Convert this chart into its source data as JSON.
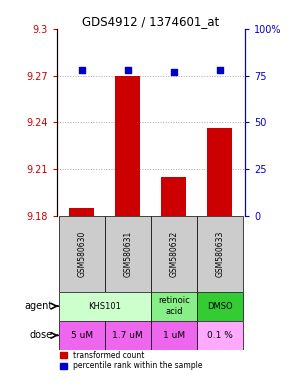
{
  "title": "GDS4912 / 1374601_at",
  "samples": [
    "GSM580630",
    "GSM580631",
    "GSM580632",
    "GSM580633"
  ],
  "bar_values": [
    9.185,
    9.27,
    9.205,
    9.236
  ],
  "percentile_values": [
    78,
    78,
    77,
    78
  ],
  "ylim_left": [
    9.18,
    9.3
  ],
  "ylim_right": [
    0,
    100
  ],
  "yticks_left": [
    9.18,
    9.21,
    9.24,
    9.27,
    9.3
  ],
  "ytick_labels_left": [
    "9.18",
    "9.21",
    "9.24",
    "9.27",
    "9.3"
  ],
  "yticks_right": [
    0,
    25,
    50,
    75,
    100
  ],
  "ytick_labels_right": [
    "0",
    "25",
    "50",
    "75",
    "100%"
  ],
  "bar_color": "#cc0000",
  "percentile_color": "#0000cc",
  "bar_baseline": 9.18,
  "agent_info": [
    {
      "c0": 0,
      "c1": 1,
      "label": "KHS101",
      "color": "#ccffcc"
    },
    {
      "c0": 2,
      "c1": 2,
      "label": "retinoic\nacid",
      "color": "#88ee88"
    },
    {
      "c0": 3,
      "c1": 3,
      "label": "DMSO",
      "color": "#33cc33"
    }
  ],
  "dose_labels": [
    "5 uM",
    "1.7 uM",
    "1 uM",
    "0.1 %"
  ],
  "dose_colors": [
    "#ee66ee",
    "#ee66ee",
    "#ee66ee",
    "#ffaaff"
  ],
  "sample_box_color": "#cccccc",
  "grid_color": "#aaaaaa",
  "grid_ticks": [
    9.21,
    9.24,
    9.27
  ],
  "legend_bar_label": "transformed count",
  "legend_pct_label": "percentile rank within the sample",
  "agent_label_x": "agent",
  "dose_label_x": "dose"
}
